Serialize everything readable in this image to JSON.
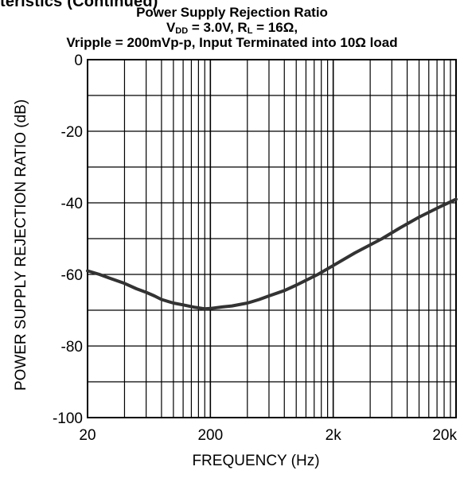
{
  "page_heading": "teristics (Continued)",
  "title": {
    "line1": "Power Supply Rejection Ratio",
    "line2_vdd_label": "V",
    "line2_vdd_sub": "DD",
    "line2_vdd_value": " = 3.0V, ",
    "line2_rl_label": "R",
    "line2_rl_sub": "L",
    "line2_rl_value": " = 16Ω,",
    "line3": "Vripple = 200mVp-p, Input Terminated into 10Ω load"
  },
  "chart_data": {
    "type": "line",
    "xlabel": "FREQUENCY (Hz)",
    "ylabel": "POWER SUPPLY REJECTION RATIO (dB)",
    "xscale": "log",
    "xlim": [
      20,
      20000
    ],
    "ylim": [
      -100,
      0
    ],
    "grid": true,
    "x_ticks": [
      20,
      200,
      2000,
      20000
    ],
    "x_tick_labels": [
      "20",
      "200",
      "2k",
      "20k"
    ],
    "y_ticks": [
      0,
      -20,
      -40,
      -60,
      -80,
      -100
    ],
    "y_tick_labels": [
      "0",
      "-20",
      "-40",
      "-60",
      "-80",
      "-100"
    ],
    "series": [
      {
        "color": "#333333",
        "x": [
          20,
          25,
          30,
          40,
          50,
          60,
          70,
          80,
          100,
          120,
          150,
          180,
          200,
          250,
          300,
          400,
          500,
          600,
          800,
          1000,
          1500,
          2000,
          3000,
          5000,
          7000,
          10000,
          15000,
          20000
        ],
        "y": [
          -59,
          -60,
          -61,
          -62.5,
          -64,
          -65,
          -66,
          -67,
          -68,
          -68.5,
          -69.2,
          -69.6,
          -69.5,
          -69.1,
          -68.8,
          -68,
          -67,
          -66,
          -64.5,
          -63,
          -60,
          -57.5,
          -54,
          -50,
          -47,
          -44,
          -41,
          -39
        ]
      }
    ]
  }
}
